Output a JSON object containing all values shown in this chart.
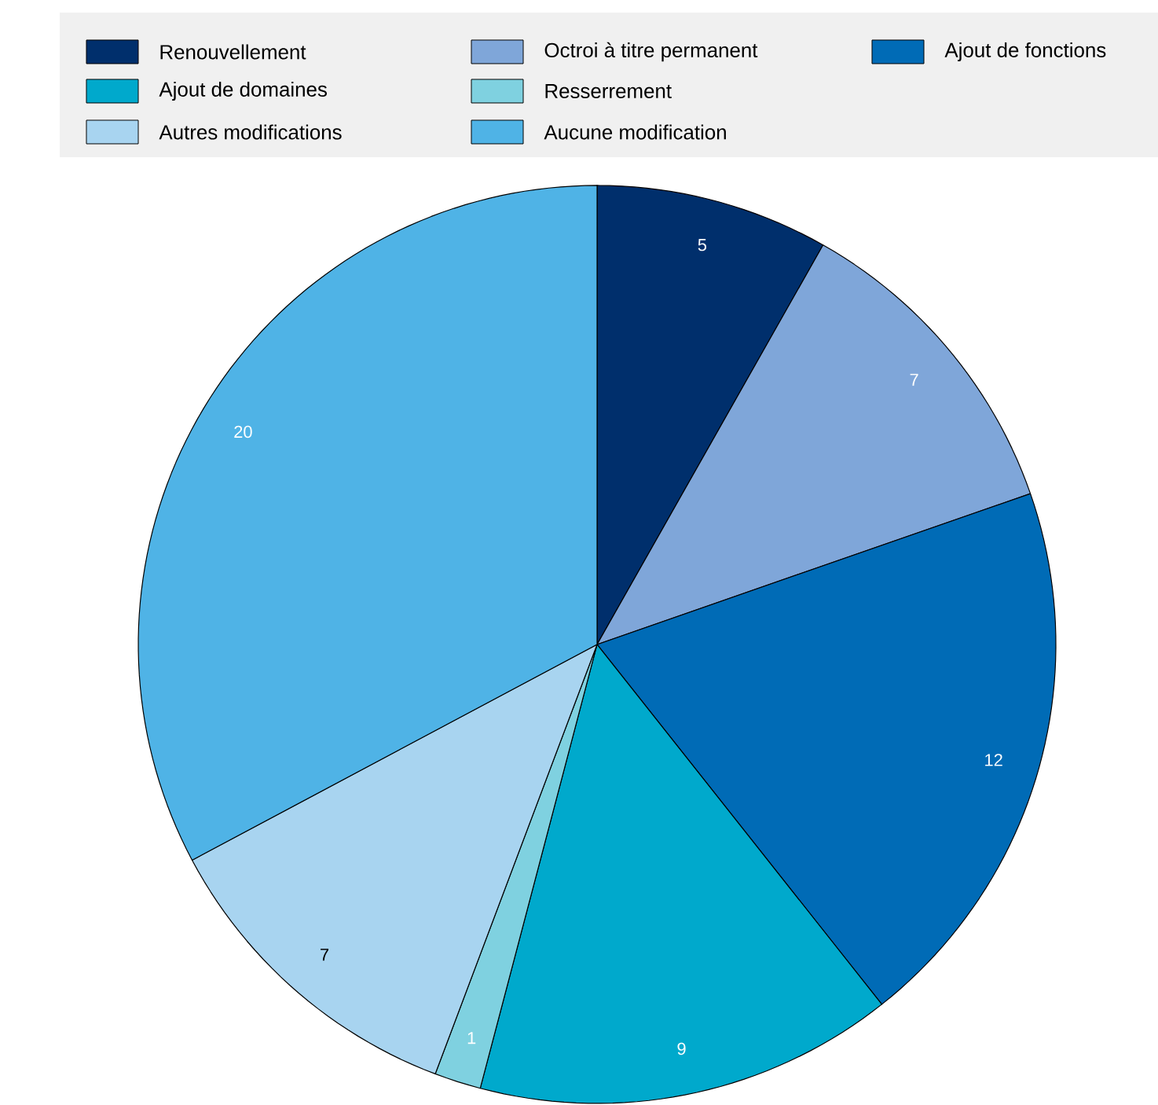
{
  "chart_data": {
    "type": "pie",
    "categories": [
      "Renouvellement",
      "Octroi à titre permanent",
      "Ajout de fonctions",
      "Ajout de domaines",
      "Resserrement",
      "Autres modifications",
      "Aucune modification"
    ],
    "values": [
      5,
      7,
      12,
      9,
      1,
      7,
      20
    ],
    "colors": [
      "#002f6c",
      "#7fa6d9",
      "#006bb6",
      "#00a9cc",
      "#7fd1e0",
      "#a8d4f0",
      "#4fb3e6"
    ],
    "data_labels": true,
    "legend": "top"
  }
}
